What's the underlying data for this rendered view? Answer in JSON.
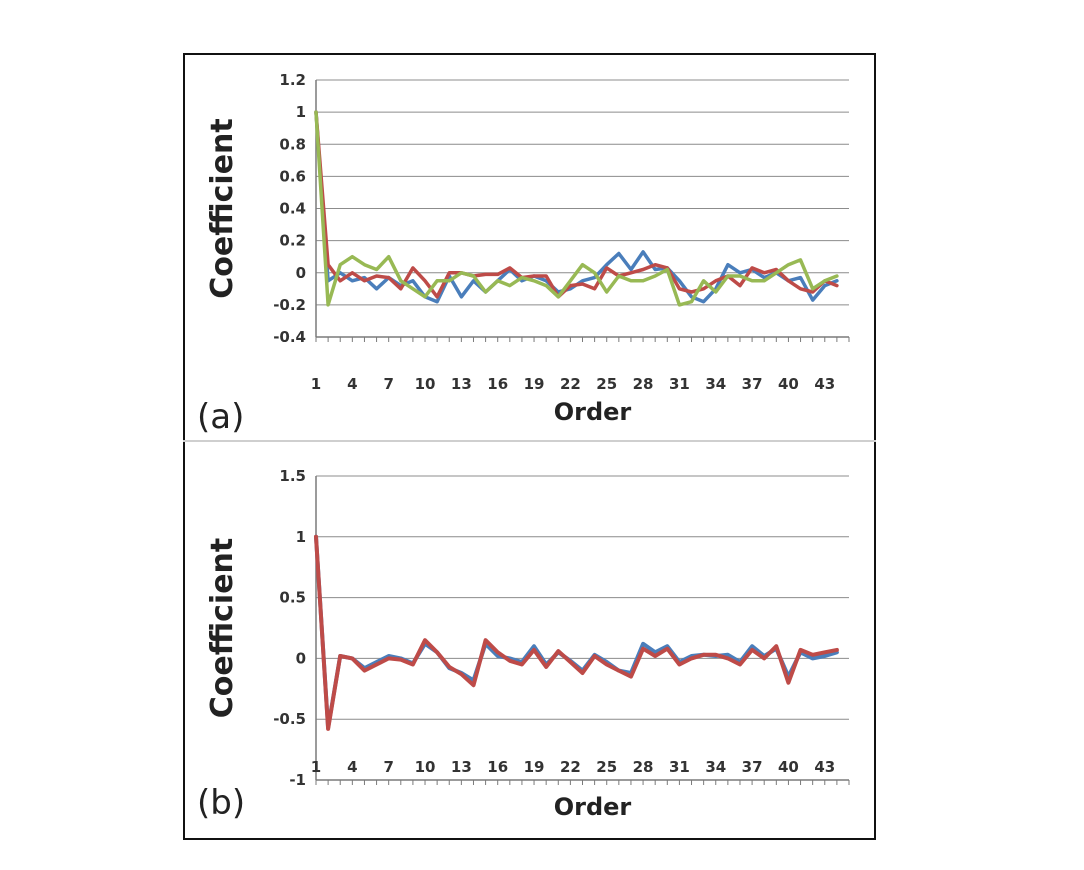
{
  "chart_data": [
    {
      "type": "line",
      "panel_label": "(a)",
      "xlabel": "Order",
      "ylabel": "Coefficient",
      "ylim": [
        -0.4,
        1.2
      ],
      "yticks": [
        -0.4,
        -0.2,
        0,
        0.2,
        0.4,
        0.6,
        0.8,
        1,
        1.2
      ],
      "ytick_labels": [
        "-0.4",
        "-0.2",
        "0",
        "0.2",
        "0.4",
        "0.6",
        "0.8",
        "1",
        "1.2"
      ],
      "xlim": [
        1,
        45
      ],
      "xtick_values": [
        1,
        4,
        7,
        10,
        13,
        16,
        19,
        22,
        25,
        28,
        31,
        34,
        37,
        40,
        43
      ],
      "grid": true,
      "legend": "none",
      "series": [
        {
          "color": "#4a7ebb",
          "values": [
            1.0,
            -0.05,
            0.0,
            -0.05,
            -0.03,
            -0.1,
            -0.03,
            -0.08,
            -0.05,
            -0.15,
            -0.18,
            -0.02,
            -0.15,
            -0.05,
            -0.12,
            -0.05,
            0.02,
            -0.05,
            -0.02,
            -0.05,
            -0.12,
            -0.1,
            -0.05,
            -0.03,
            0.05,
            0.12,
            0.02,
            0.13,
            0.02,
            0.03,
            -0.05,
            -0.15,
            -0.18,
            -0.1,
            0.05,
            0.0,
            0.02,
            -0.03,
            0.0,
            -0.05,
            -0.03,
            -0.17,
            -0.08,
            -0.05
          ]
        },
        {
          "color": "#be4b48",
          "values": [
            1.0,
            0.05,
            -0.05,
            0.0,
            -0.05,
            -0.02,
            -0.03,
            -0.1,
            0.03,
            -0.05,
            -0.15,
            0.0,
            0.0,
            -0.02,
            -0.01,
            -0.01,
            0.03,
            -0.03,
            -0.02,
            -0.02,
            -0.15,
            -0.08,
            -0.07,
            -0.1,
            0.03,
            -0.02,
            0.0,
            0.02,
            0.05,
            0.03,
            -0.1,
            -0.12,
            -0.1,
            -0.05,
            -0.02,
            -0.08,
            0.03,
            0.0,
            0.02,
            -0.05,
            -0.1,
            -0.12,
            -0.05,
            -0.08
          ]
        },
        {
          "color": "#98b954",
          "values": [
            1.0,
            -0.2,
            0.05,
            0.1,
            0.05,
            0.02,
            0.1,
            -0.05,
            -0.1,
            -0.15,
            -0.05,
            -0.05,
            0.0,
            -0.02,
            -0.12,
            -0.05,
            -0.08,
            -0.03,
            -0.05,
            -0.08,
            -0.15,
            -0.05,
            0.05,
            0.0,
            -0.12,
            -0.02,
            -0.05,
            -0.05,
            -0.02,
            0.02,
            -0.2,
            -0.18,
            -0.05,
            -0.12,
            -0.02,
            -0.02,
            -0.05,
            -0.05,
            0.0,
            0.05,
            0.08,
            -0.1,
            -0.05,
            -0.02
          ]
        }
      ]
    },
    {
      "type": "line",
      "panel_label": "(b)",
      "xlabel": "Order",
      "ylabel": "Coefficient",
      "ylim": [
        -1,
        1.5
      ],
      "yticks": [
        -1,
        -0.5,
        0,
        0.5,
        1,
        1.5
      ],
      "ytick_labels": [
        "-1",
        "-0.5",
        "0",
        "0.5",
        "1",
        "1.5"
      ],
      "xlim": [
        1,
        45
      ],
      "xtick_values": [
        1,
        4,
        7,
        10,
        13,
        16,
        19,
        22,
        25,
        28,
        31,
        34,
        37,
        40,
        43
      ],
      "grid": true,
      "legend": "none",
      "series": [
        {
          "color": "#4a7ebb",
          "values": [
            1.0,
            -0.57,
            0.02,
            0.0,
            -0.08,
            -0.03,
            0.02,
            0.0,
            -0.04,
            0.12,
            0.05,
            -0.08,
            -0.12,
            -0.18,
            0.12,
            0.02,
            0.0,
            -0.03,
            0.1,
            -0.05,
            0.05,
            -0.02,
            -0.1,
            0.03,
            -0.03,
            -0.1,
            -0.12,
            0.12,
            0.05,
            0.1,
            -0.03,
            0.02,
            0.03,
            0.02,
            0.03,
            -0.03,
            0.1,
            0.02,
            0.08,
            -0.15,
            0.05,
            0.0,
            0.02,
            0.05
          ]
        },
        {
          "color": "#be4b48",
          "values": [
            1.0,
            -0.58,
            0.02,
            0.0,
            -0.1,
            -0.05,
            0.0,
            -0.01,
            -0.05,
            0.15,
            0.05,
            -0.07,
            -0.13,
            -0.22,
            0.15,
            0.05,
            -0.02,
            -0.05,
            0.07,
            -0.07,
            0.06,
            -0.03,
            -0.12,
            0.02,
            -0.05,
            -0.1,
            -0.15,
            0.08,
            0.02,
            0.08,
            -0.05,
            0.0,
            0.03,
            0.03,
            0.0,
            -0.05,
            0.07,
            0.0,
            0.1,
            -0.2,
            0.07,
            0.03,
            0.05,
            0.07
          ]
        }
      ]
    }
  ]
}
